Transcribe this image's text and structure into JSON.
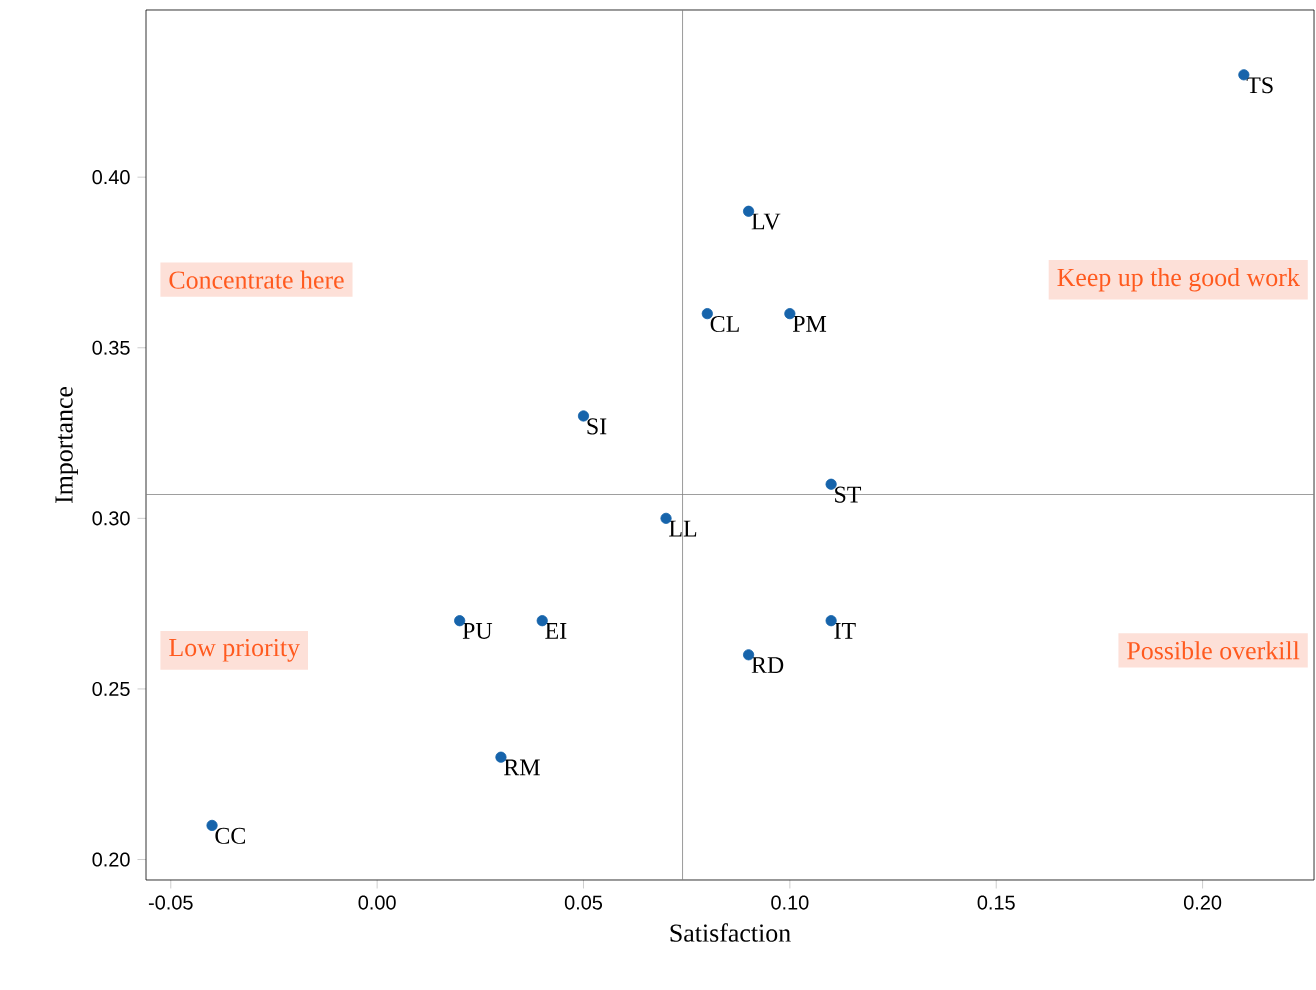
{
  "chart_data": {
    "type": "scatter",
    "xlabel": "Satisfaction",
    "ylabel": "Importance",
    "x": [
      0.21,
      0.09,
      0.08,
      0.1,
      0.05,
      0.11,
      0.07,
      0.02,
      0.04,
      0.11,
      0.09,
      0.03,
      -0.04
    ],
    "values": [
      0.43,
      0.39,
      0.36,
      0.36,
      0.33,
      0.31,
      0.3,
      0.27,
      0.27,
      0.27,
      0.26,
      0.23,
      0.21
    ],
    "value_labels": [
      "TS",
      "LV",
      "CL",
      "PM",
      "SI",
      "ST",
      "LL",
      "PU",
      "EI",
      "IT",
      "RD",
      "RM",
      "CC"
    ],
    "color": "#1764ab",
    "marker": "circle",
    "xlim": [
      -0.056,
      0.227
    ],
    "ylim": [
      0.194,
      0.449
    ],
    "xticks": [
      {
        "value": -0.05,
        "label": "-0.05"
      },
      {
        "value": 0,
        "label": "0.00"
      },
      {
        "value": 0.05,
        "label": "0.05"
      },
      {
        "value": 0.1,
        "label": "0.10"
      },
      {
        "value": 0.15,
        "label": "0.15"
      },
      {
        "value": 0.2,
        "label": "0.20"
      }
    ],
    "yticks": [
      {
        "value": 0.2,
        "label": "0.20"
      },
      {
        "value": 0.25,
        "label": "0.25"
      },
      {
        "value": 0.3,
        "label": "0.30"
      },
      {
        "value": 0.35,
        "label": "0.35"
      },
      {
        "value": 0.4,
        "label": "0.40"
      }
    ],
    "ref_lines": [
      {
        "axis": "x",
        "value": 0.074,
        "color": "#808080"
      },
      {
        "axis": "y",
        "value": 0.307,
        "color": "#808080"
      }
    ],
    "annotations": [
      "Concentrate here",
      "Keep up the good work",
      "Low priority",
      "Possible overkill"
    ],
    "grid": false
  }
}
